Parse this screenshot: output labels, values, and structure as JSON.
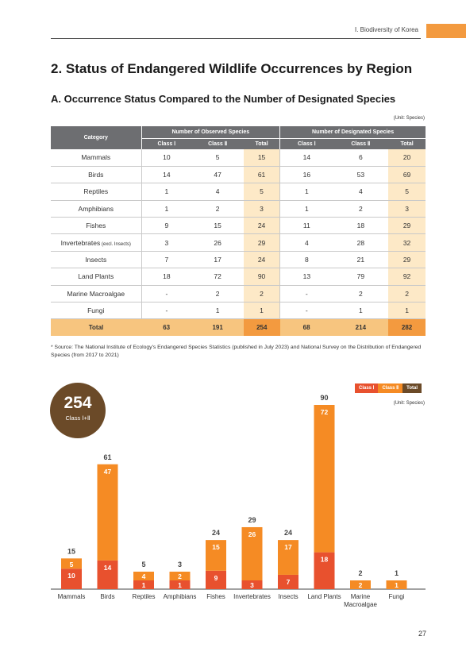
{
  "header": {
    "chapter": "Ⅰ. Biodiversity of Korea"
  },
  "title": "2. Status of Endangered Wildlife Occurrences by Region",
  "subtitle": "A. Occurrence Status Compared to the Number of Designated Species",
  "table": {
    "unit": "(Unit: Species)",
    "category_header": "Category",
    "group_observed": "Number of Observed Species",
    "group_designated": "Number of Designated Species",
    "sub_headers": [
      "Class Ⅰ",
      "Class Ⅱ",
      "Total",
      "Class Ⅰ",
      "Class Ⅱ",
      "Total"
    ],
    "rows": [
      {
        "category": "Mammals",
        "note": "",
        "obs1": "10",
        "obs2": "5",
        "obsT": "15",
        "des1": "14",
        "des2": "6",
        "desT": "20"
      },
      {
        "category": "Birds",
        "note": "",
        "obs1": "14",
        "obs2": "47",
        "obsT": "61",
        "des1": "16",
        "des2": "53",
        "desT": "69"
      },
      {
        "category": "Reptiles",
        "note": "",
        "obs1": "1",
        "obs2": "4",
        "obsT": "5",
        "des1": "1",
        "des2": "4",
        "desT": "5"
      },
      {
        "category": "Amphibians",
        "note": "",
        "obs1": "1",
        "obs2": "2",
        "obsT": "3",
        "des1": "1",
        "des2": "2",
        "desT": "3"
      },
      {
        "category": "Fishes",
        "note": "",
        "obs1": "9",
        "obs2": "15",
        "obsT": "24",
        "des1": "11",
        "des2": "18",
        "desT": "29"
      },
      {
        "category": "Invertebrates",
        "note": " (excl. Insects)",
        "obs1": "3",
        "obs2": "26",
        "obsT": "29",
        "des1": "4",
        "des2": "28",
        "desT": "32"
      },
      {
        "category": "Insects",
        "note": "",
        "obs1": "7",
        "obs2": "17",
        "obsT": "24",
        "des1": "8",
        "des2": "21",
        "desT": "29"
      },
      {
        "category": "Land Plants",
        "note": "",
        "obs1": "18",
        "obs2": "72",
        "obsT": "90",
        "des1": "13",
        "des2": "79",
        "desT": "92"
      },
      {
        "category": "Marine Macroalgae",
        "note": "",
        "obs1": "-",
        "obs2": "2",
        "obsT": "2",
        "des1": "-",
        "des2": "2",
        "desT": "2"
      },
      {
        "category": "Fungi",
        "note": "",
        "obs1": "-",
        "obs2": "1",
        "obsT": "1",
        "des1": "-",
        "des2": "1",
        "desT": "1"
      }
    ],
    "total_row": {
      "category": "Total",
      "obs1": "63",
      "obs2": "191",
      "obsT": "254",
      "des1": "68",
      "des2": "214",
      "desT": "282"
    }
  },
  "source_note": "* Source: The National Institute of Ecology's Endangered Species Statistics (published in July 2023) and National Survey on the Distribution of Endangered Species (from 2017 to 2021)",
  "badge": {
    "value": "254",
    "label": "Class Ⅰ+Ⅱ"
  },
  "legend": {
    "class1": "Class Ⅰ",
    "class2": "Class Ⅱ",
    "total": "Total"
  },
  "chart_unit": "(Unit: Species)",
  "colors": {
    "class1": "#e8512e",
    "class2": "#f58b24",
    "total": "#6b4a28"
  },
  "chart_data": {
    "type": "bar",
    "stacked": true,
    "categories": [
      "Mammals",
      "Birds",
      "Reptiles",
      "Amphibians",
      "Fishes",
      "Invertebrates",
      "Insects",
      "Land Plants",
      "Marine Macroalgae",
      "Fungi"
    ],
    "category_lines": [
      [
        "Mammals"
      ],
      [
        "Birds"
      ],
      [
        "Reptiles"
      ],
      [
        "Amphibians"
      ],
      [
        "Fishes"
      ],
      [
        "Invertebrates"
      ],
      [
        "Insects"
      ],
      [
        "Land Plants"
      ],
      [
        "Marine",
        "Macroalgae"
      ],
      [
        "Fungi"
      ]
    ],
    "series": [
      {
        "name": "Class Ⅰ",
        "values": [
          10,
          14,
          1,
          1,
          9,
          3,
          7,
          18,
          0,
          0
        ]
      },
      {
        "name": "Class Ⅱ",
        "values": [
          5,
          47,
          4,
          2,
          15,
          26,
          17,
          72,
          2,
          1
        ]
      }
    ],
    "totals": [
      15,
      61,
      5,
      3,
      24,
      29,
      24,
      90,
      2,
      1
    ],
    "ylim": [
      0,
      90
    ],
    "legend_position": "top-right",
    "grid": false
  },
  "page_number": "27"
}
